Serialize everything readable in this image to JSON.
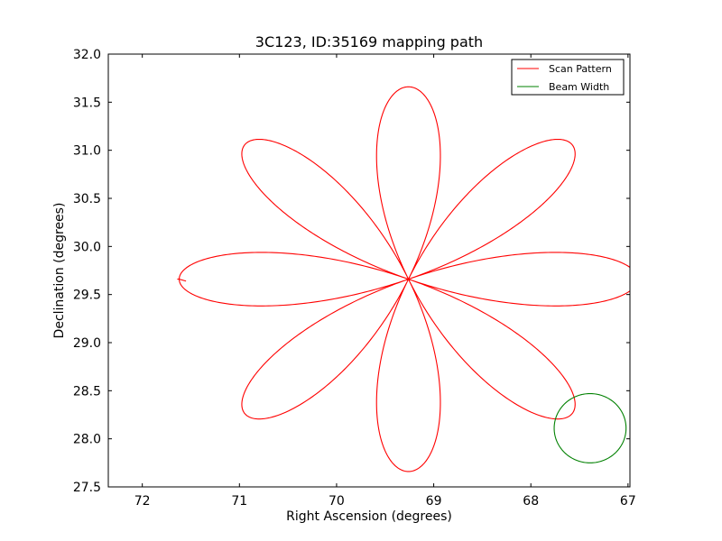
{
  "chart_data": {
    "type": "line",
    "title": "3C123, ID:35169 mapping path",
    "xlabel": "Right Ascension (degrees)",
    "ylabel": "Declination (degrees)",
    "xlim": [
      72.35,
      66.98
    ],
    "ylim": [
      27.5,
      32.0
    ],
    "x_ticks": [
      72,
      71,
      70,
      69,
      68,
      67
    ],
    "x_tick_labels": [
      "72",
      "71",
      "70",
      "69",
      "68",
      "67"
    ],
    "y_ticks": [
      27.5,
      28.0,
      28.5,
      29.0,
      29.5,
      30.0,
      30.5,
      31.0,
      31.5,
      32.0
    ],
    "y_tick_labels": [
      "27.5",
      "28.0",
      "28.5",
      "29.0",
      "29.5",
      "30.0",
      "30.5",
      "31.0",
      "31.5",
      "32.0"
    ],
    "grid": false,
    "legend_position": "top-right",
    "series": [
      {
        "name": "Scan Pattern",
        "kind": "rose",
        "color": "#ff0000",
        "center": [
          69.26,
          29.66
        ],
        "amplitude_ra": 2.36,
        "amplitude_dec": 2.0,
        "petals": 8,
        "start_point": [
          71.64,
          29.66
        ],
        "end_point": [
          71.55,
          29.64
        ]
      },
      {
        "name": "Beam Width",
        "kind": "circle",
        "color": "#008000",
        "center": [
          67.39,
          28.11
        ],
        "radius_ra": 0.37,
        "radius_dec": 0.36
      }
    ]
  }
}
